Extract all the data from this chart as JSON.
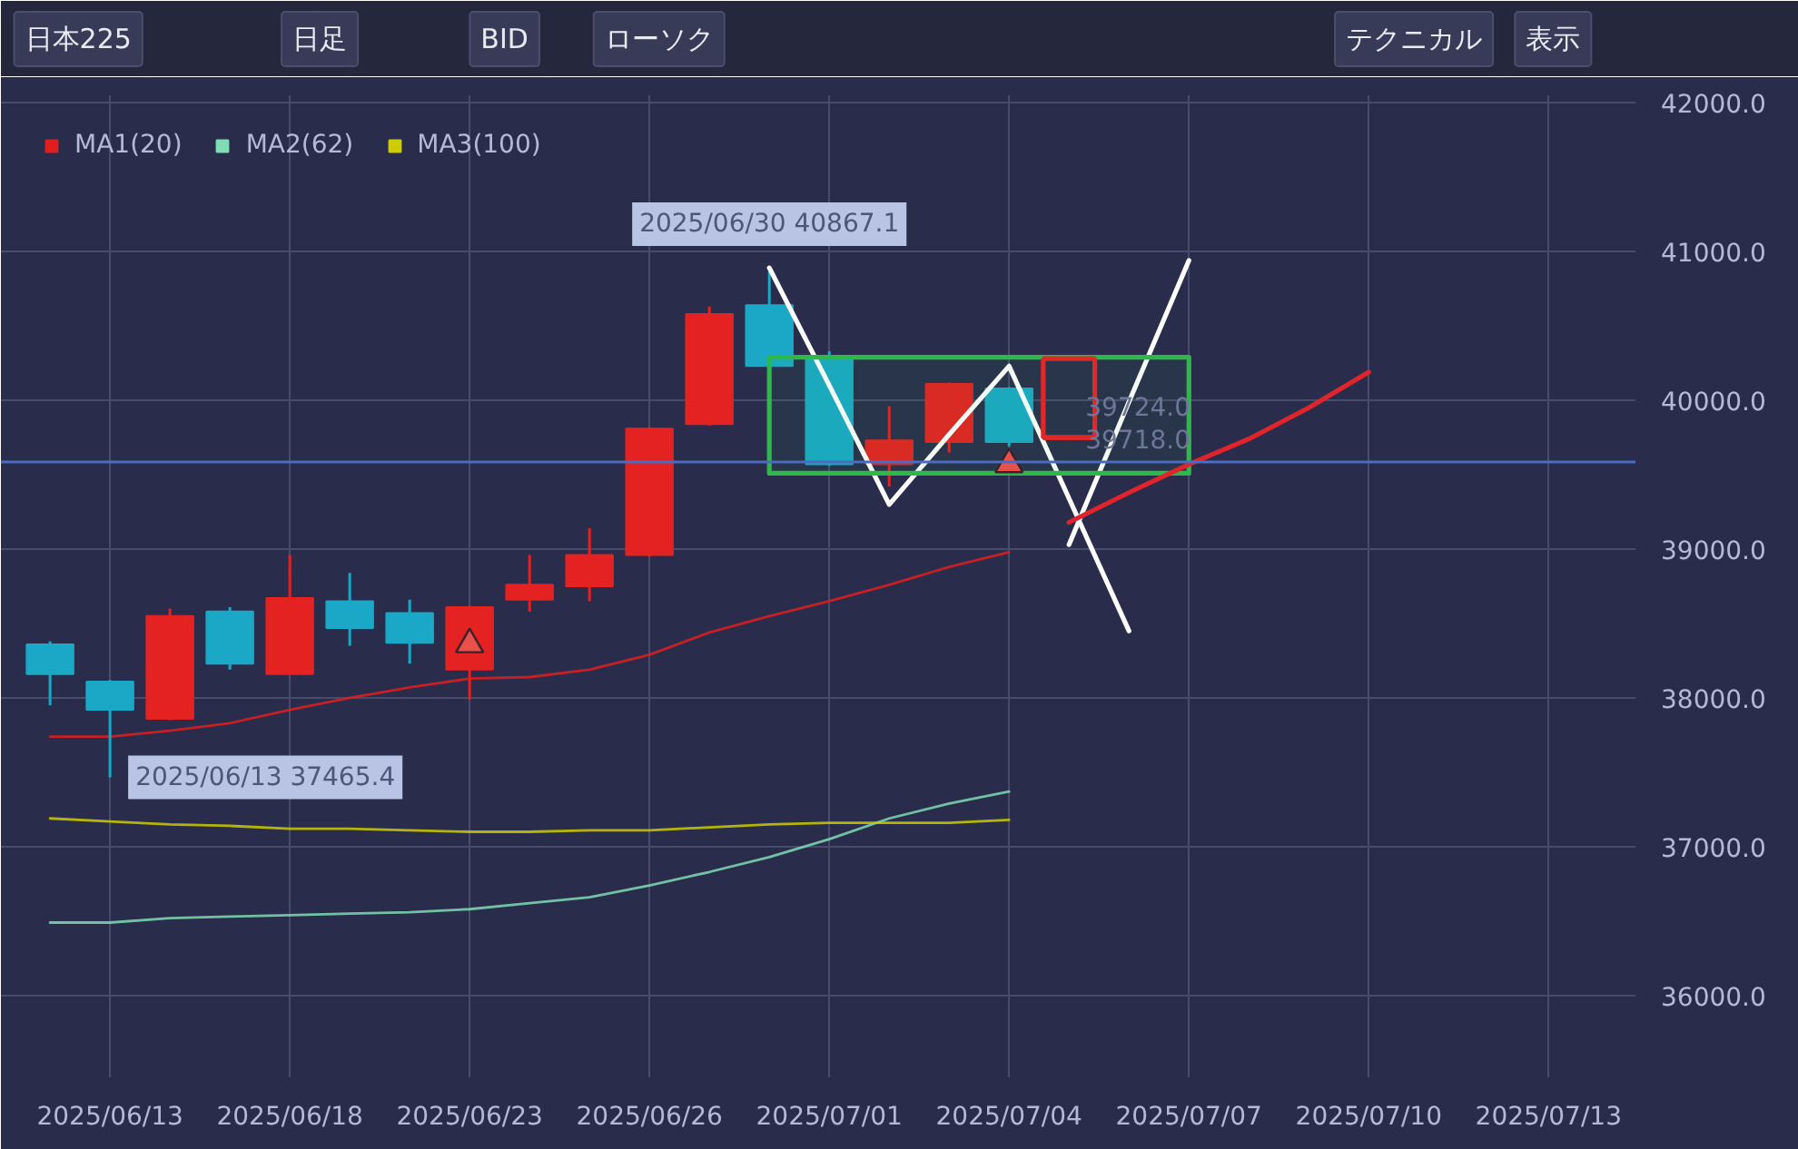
{
  "chart_data": {
    "type": "candlestick",
    "categories": [
      null,
      "2025/06/13",
      null,
      null,
      "2025/06/18",
      null,
      null,
      "2025/06/23",
      null,
      null,
      "2025/06/26",
      null,
      null,
      "2025/07/01",
      null,
      null,
      "2025/07/04",
      null,
      null,
      "2025/07/07",
      null,
      null,
      "2025/07/10",
      null,
      null,
      "2025/07/13",
      null
    ],
    "ohlc": [
      [
        38360,
        38380,
        37950,
        38160
      ],
      [
        38110,
        38120,
        37465.4,
        37920
      ],
      [
        37860,
        38600,
        37850,
        38550
      ],
      [
        38580,
        38610,
        38190,
        38230
      ],
      [
        38160,
        38960,
        38150,
        38670
      ],
      [
        38650,
        38840,
        38350,
        38470
      ],
      [
        38570,
        38660,
        38230,
        38370
      ],
      [
        38190,
        38620,
        37990,
        38610
      ],
      [
        38660,
        38960,
        38580,
        38760
      ],
      [
        38750,
        39140,
        38650,
        38960
      ],
      [
        38960,
        39820,
        38950,
        39810
      ],
      [
        39840,
        40630,
        39830,
        40580
      ],
      [
        40640,
        40867.1,
        40220,
        40230
      ],
      [
        40290,
        40330,
        39560,
        39570
      ],
      [
        39570,
        39960,
        39420,
        39730
      ],
      [
        39720,
        40120,
        39650,
        40110
      ],
      [
        40080,
        40090,
        39690,
        39720
      ],
      null,
      null,
      null,
      null,
      null,
      null,
      null,
      null,
      null,
      null
    ],
    "colors": [
      "#1aa8c6",
      "#1aa8c6",
      "#e42222",
      "#1aa8c6",
      "#e42222",
      "#1aa8c6",
      "#1aa8c6",
      "#e42222",
      "#e42222",
      "#e42222",
      "#e42222",
      "#e42222",
      "#1aa8c6",
      "#1aa8c6",
      "#e42222",
      "#e42222",
      "#1aa8c6",
      null,
      null,
      null,
      null,
      null,
      null,
      null,
      null,
      null,
      null
    ],
    "series": [
      {
        "name": "MA1(20)",
        "type": "line",
        "color": "#e01e1e",
        "values": [
          37740,
          37740,
          37780,
          37830,
          37920,
          38000,
          38070,
          38130,
          38140,
          38190,
          38290,
          38440,
          38550,
          38650,
          38760,
          38880,
          38980,
          null,
          null,
          null,
          null,
          null,
          null,
          null,
          null,
          null,
          null
        ]
      },
      {
        "name": "MA2(62)",
        "type": "line",
        "color": "#80dcb4",
        "values": [
          36490,
          36490,
          36520,
          36530,
          36540,
          36550,
          36560,
          36580,
          36620,
          36660,
          36740,
          36830,
          36930,
          37050,
          37190,
          37290,
          37370,
          null,
          null,
          null,
          null,
          null,
          null,
          null,
          null,
          null,
          null
        ]
      },
      {
        "name": "MA3(100)",
        "type": "line",
        "color": "#cccc00",
        "values": [
          37190,
          37170,
          37150,
          37140,
          37120,
          37120,
          37110,
          37100,
          37100,
          37110,
          37110,
          37130,
          37150,
          37160,
          37160,
          37160,
          37180,
          null,
          null,
          null,
          null,
          null,
          null,
          null,
          null,
          null,
          null
        ]
      },
      {
        "type": "line",
        "color": "#ffffff",
        "values": [
          null,
          null,
          null,
          null,
          null,
          null,
          null,
          null,
          null,
          null,
          null,
          null,
          40890,
          40100,
          39300,
          39770,
          40230,
          39340,
          38450,
          null,
          null,
          null,
          null,
          null,
          null,
          null,
          null
        ]
      },
      {
        "type": "line",
        "color": "#ffffff",
        "values": [
          null,
          null,
          null,
          null,
          null,
          null,
          null,
          null,
          null,
          null,
          null,
          null,
          null,
          null,
          null,
          null,
          null,
          39030,
          39990,
          40940,
          null,
          null,
          null,
          null,
          null,
          null,
          null
        ]
      },
      {
        "type": "line",
        "color": "#2eb84a",
        "values": [
          null,
          null,
          null,
          null,
          null,
          null,
          null,
          null,
          null,
          null,
          null,
          null,
          null,
          null,
          null,
          null,
          null,
          null,
          null,
          null,
          null,
          null,
          null,
          null,
          null,
          null,
          null
        ],
        "lower": [
          null,
          null,
          null,
          null,
          null,
          null,
          null,
          null,
          null,
          null,
          null,
          null,
          39510,
          39510,
          39510,
          39510,
          39510,
          39510,
          39510,
          39510,
          null,
          null,
          null,
          null,
          null,
          null,
          null
        ],
        "upper": [
          null,
          null,
          null,
          null,
          null,
          null,
          null,
          null,
          null,
          null,
          null,
          null,
          40290,
          40290,
          40290,
          40290,
          40290,
          40290,
          40290,
          40290,
          null,
          null,
          null,
          null,
          null,
          null,
          null
        ]
      },
      {
        "type": "box",
        "color": "#e02828",
        "boxes": [
          null,
          null,
          null,
          null,
          null,
          null,
          null,
          null,
          null,
          null,
          null,
          null,
          null,
          null,
          null,
          null,
          null,
          {
            "low": 39750,
            "q1": 39750,
            "median": 39750,
            "q3": 40280,
            "high": 40280
          },
          null,
          null,
          null,
          null,
          null,
          null,
          null,
          null,
          null
        ]
      },
      {
        "type": "line",
        "color": "#e0242c",
        "values": [
          null,
          null,
          null,
          null,
          null,
          null,
          null,
          null,
          null,
          null,
          null,
          null,
          null,
          null,
          null,
          null,
          null,
          39180,
          39380,
          39570,
          39740,
          39950,
          40190,
          null,
          null,
          null,
          null
        ]
      },
      {
        "type": "scatter",
        "marker": "triangle",
        "color": "#e8504c",
        "x": [
          "2025/06/23",
          "2025/07/04"
        ],
        "values": [
          38360,
          39570
        ]
      }
    ],
    "ylim": [
      35450,
      42050
    ],
    "yticks": [
      {
        "value": 36000,
        "label": "36000.0"
      },
      {
        "value": 37000,
        "label": "37000.0"
      },
      {
        "value": 38000,
        "label": "38000.0"
      },
      {
        "value": 39000,
        "label": "39000.0"
      },
      {
        "value": 40000,
        "label": "40000.0"
      },
      {
        "value": 41000,
        "label": "41000.0"
      },
      {
        "value": 42000,
        "label": "42000.0"
      }
    ],
    "ref_lines": [
      {
        "axis": "y",
        "value": 39585,
        "color": "#4a6cc0"
      }
    ],
    "annotations": [
      "日本225",
      "日足",
      "BID",
      "ローソク",
      "テクニカル",
      "表示",
      "39724.0",
      "39718.0",
      {
        "text": "2025/06/30 40867.1",
        "y": 40867.1
      },
      {
        "text": "2025/06/13 37465.4",
        "x": "2025/06/13",
        "y": 37465.4
      }
    ],
    "legend": "top left",
    "grid": true
  }
}
